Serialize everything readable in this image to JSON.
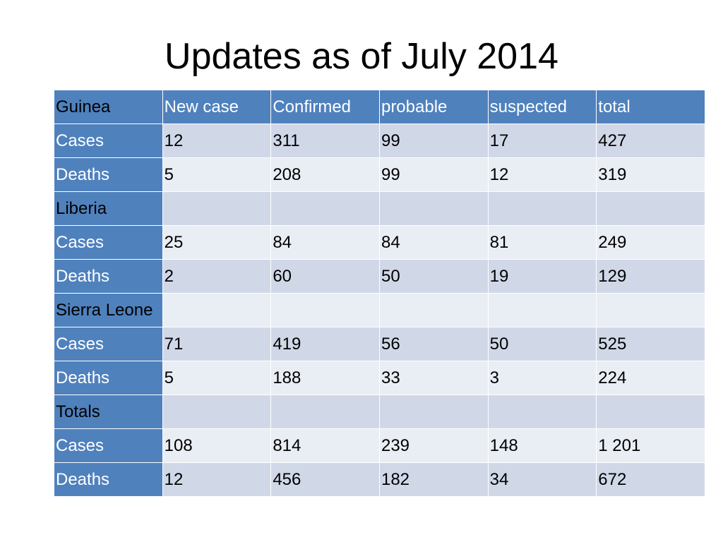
{
  "title": "Updates as of July 2014",
  "table": {
    "header": [
      "Guinea",
      "New case",
      "Confirmed",
      "probable",
      "suspected",
      "total"
    ],
    "rows": [
      [
        "Cases",
        "12",
        "311",
        "99",
        "17",
        "427"
      ],
      [
        "Deaths",
        "5",
        "208",
        "99",
        "12",
        "319"
      ],
      [
        "Liberia",
        "",
        "",
        "",
        "",
        ""
      ],
      [
        "Cases",
        "25",
        "84",
        "84",
        "81",
        "249"
      ],
      [
        "Deaths",
        "2",
        "60",
        "50",
        "19",
        "129"
      ],
      [
        "Sierra Leone",
        "",
        "",
        "",
        "",
        ""
      ],
      [
        "Cases",
        "71",
        "419",
        "56",
        "50",
        "525"
      ],
      [
        "Deaths",
        "5",
        "188",
        "33",
        "3",
        "224"
      ],
      [
        "Totals",
        "",
        "",
        "",
        "",
        ""
      ],
      [
        "Cases",
        "108",
        "814",
        "239",
        "148",
        "1 201"
      ],
      [
        "Deaths",
        "12",
        "456",
        "182",
        "34",
        "672"
      ]
    ]
  },
  "colors": {
    "header": "#4f81bd",
    "band_dark": "#d0d8e8",
    "band_light": "#e9edf4"
  }
}
